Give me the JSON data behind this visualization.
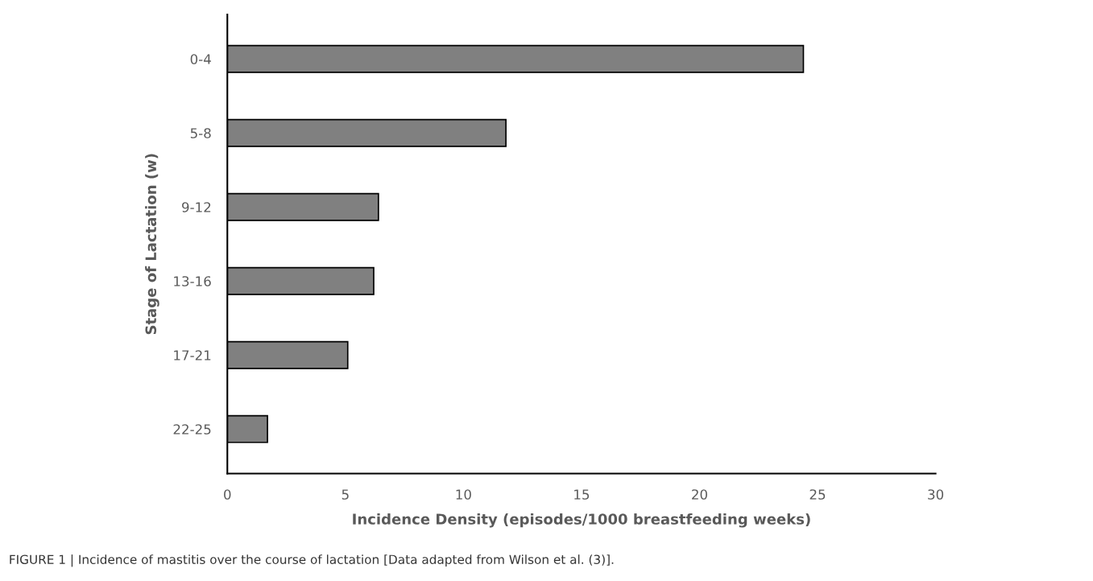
{
  "chart_data": {
    "type": "bar",
    "orientation": "horizontal",
    "xlabel": "Incidence Density (episodes/1000 breastfeeding weeks)",
    "ylabel": "Stage of Lactation (w)",
    "categories": [
      "0-4",
      "5-8",
      "9-12",
      "13-16",
      "17-21",
      "22-25"
    ],
    "values": [
      24.4,
      11.8,
      6.4,
      6.2,
      5.1,
      1.7
    ],
    "color": "#808080",
    "xlim": [
      0,
      30
    ],
    "xticks": [
      0,
      5,
      10,
      15,
      20,
      25,
      30
    ],
    "grid": false,
    "legend": false,
    "annotations": [
      "FIGURE 1 | Incidence of mastitis over the course of lactation [Data adapted from Wilson et al. (3)]."
    ]
  }
}
